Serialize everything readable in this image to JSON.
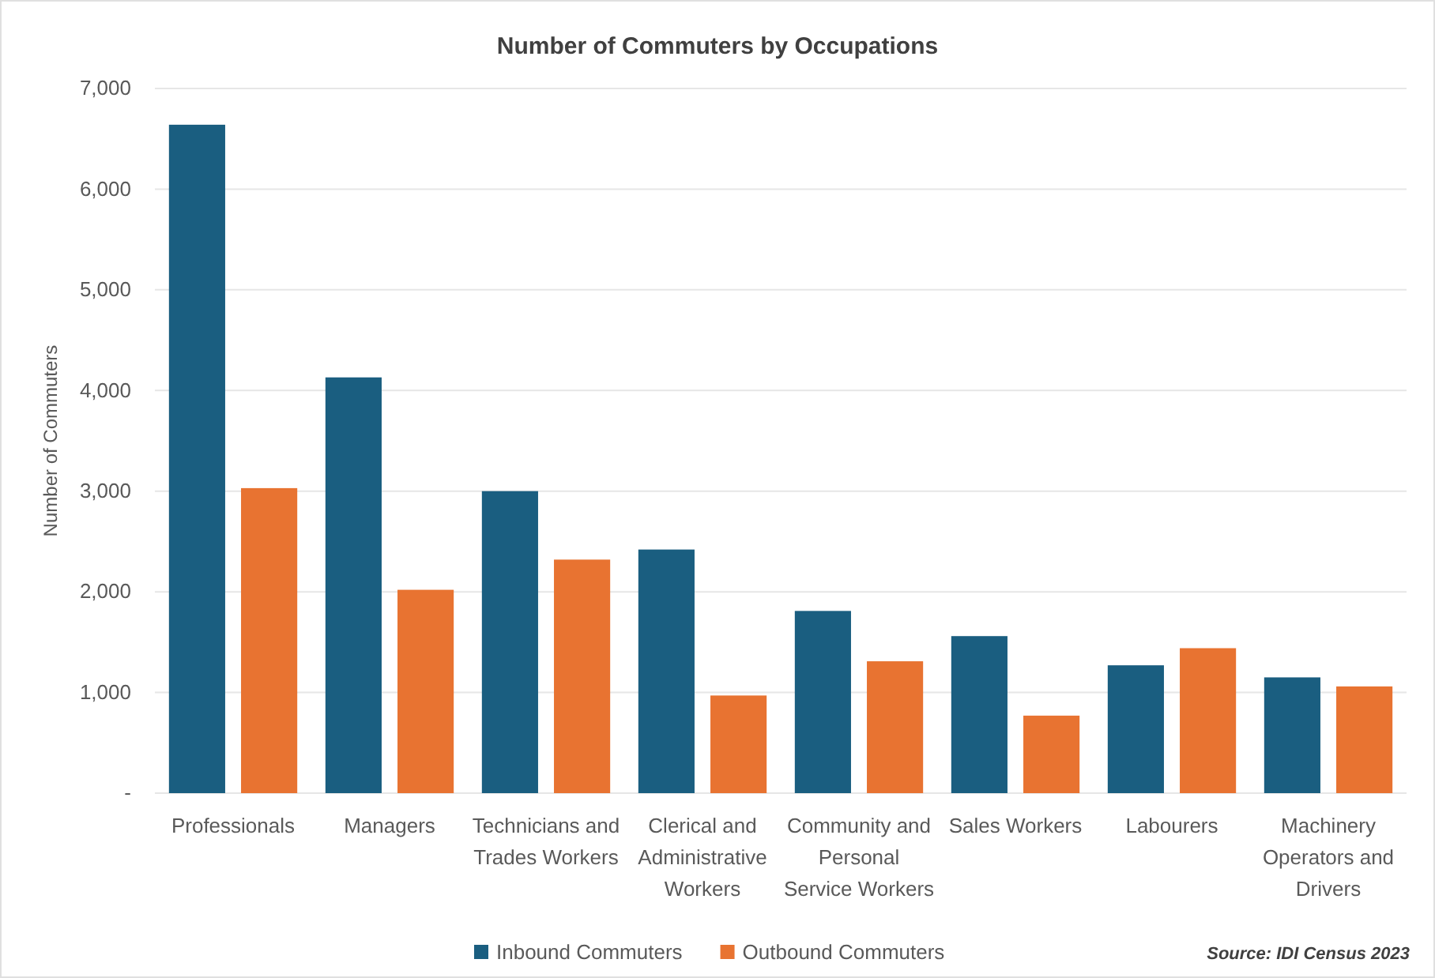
{
  "chart_data": {
    "type": "bar",
    "title": "Number of Commuters by Occupations",
    "ylabel": "Number of Commuters",
    "categories": [
      "Professionals",
      "Managers",
      "Technicians and Trades Workers",
      "Clerical and Administrative Workers",
      "Community and Personal Service Workers",
      "Sales Workers",
      "Labourers",
      "Machinery Operators and Drivers"
    ],
    "series": [
      {
        "name": "Inbound Commuters",
        "color": "#1a5e80",
        "values": [
          6640,
          4130,
          3000,
          2420,
          1810,
          1560,
          1270,
          1150
        ]
      },
      {
        "name": "Outbound Commuters",
        "color": "#e87331",
        "values": [
          3030,
          2020,
          2320,
          970,
          1310,
          770,
          1440,
          1060
        ]
      }
    ],
    "ylim": [
      0,
      7000
    ],
    "yticks": [
      {
        "value": 0,
        "label": "-"
      },
      {
        "value": 1000,
        "label": "1,000"
      },
      {
        "value": 2000,
        "label": "2,000"
      },
      {
        "value": 3000,
        "label": "3,000"
      },
      {
        "value": 4000,
        "label": "4,000"
      },
      {
        "value": 5000,
        "label": "5,000"
      },
      {
        "value": 6000,
        "label": "6,000"
      },
      {
        "value": 7000,
        "label": "7,000"
      }
    ],
    "grid": "y",
    "legend": "bottom",
    "annotations": [
      "Source: IDI Census 2023"
    ]
  }
}
